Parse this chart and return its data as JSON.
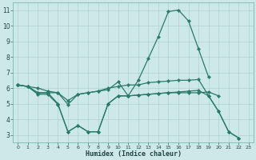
{
  "x": [
    0,
    1,
    2,
    3,
    4,
    5,
    6,
    7,
    8,
    9,
    10,
    11,
    12,
    13,
    14,
    15,
    16,
    17,
    18,
    19,
    20,
    21,
    22,
    23
  ],
  "line1": [
    6.2,
    6.1,
    5.7,
    5.7,
    5.7,
    4.95,
    5.6,
    5.7,
    5.8,
    5.9,
    6.4,
    5.5,
    5.55,
    5.6,
    5.65,
    5.7,
    5.7,
    5.7,
    5.7,
    5.75,
    5.5,
    null,
    null,
    null
  ],
  "line2": [
    6.2,
    6.1,
    5.6,
    5.6,
    4.95,
    3.2,
    3.6,
    3.2,
    3.2,
    5.0,
    5.5,
    5.5,
    5.55,
    5.6,
    5.65,
    5.7,
    5.75,
    5.8,
    5.85,
    5.5,
    4.5,
    3.2,
    2.8,
    null
  ],
  "line3": [
    6.2,
    6.1,
    5.7,
    5.7,
    5.0,
    3.2,
    3.6,
    3.2,
    3.2,
    5.0,
    5.5,
    5.5,
    6.5,
    7.9,
    9.3,
    10.9,
    11.0,
    10.3,
    8.5,
    6.7,
    null,
    null,
    null,
    null
  ],
  "line4": [
    6.2,
    6.1,
    6.0,
    5.8,
    5.7,
    5.2,
    5.6,
    5.7,
    5.8,
    6.0,
    6.1,
    6.2,
    6.2,
    6.35,
    6.4,
    6.45,
    6.5,
    6.5,
    6.55,
    5.5,
    4.5,
    3.2,
    2.8,
    null
  ],
  "color": "#2a7a6a",
  "bg_color": "#cde8e8",
  "grid_color": "#afd0d0",
  "xlabel": "Humidex (Indice chaleur)",
  "xlim": [
    -0.5,
    23.5
  ],
  "ylim": [
    2.5,
    11.5
  ],
  "yticks": [
    3,
    4,
    5,
    6,
    7,
    8,
    9,
    10,
    11
  ],
  "xticks": [
    0,
    1,
    2,
    3,
    4,
    5,
    6,
    7,
    8,
    9,
    10,
    11,
    12,
    13,
    14,
    15,
    16,
    17,
    18,
    19,
    20,
    21,
    22,
    23
  ],
  "markersize": 2.2,
  "linewidth": 0.9
}
